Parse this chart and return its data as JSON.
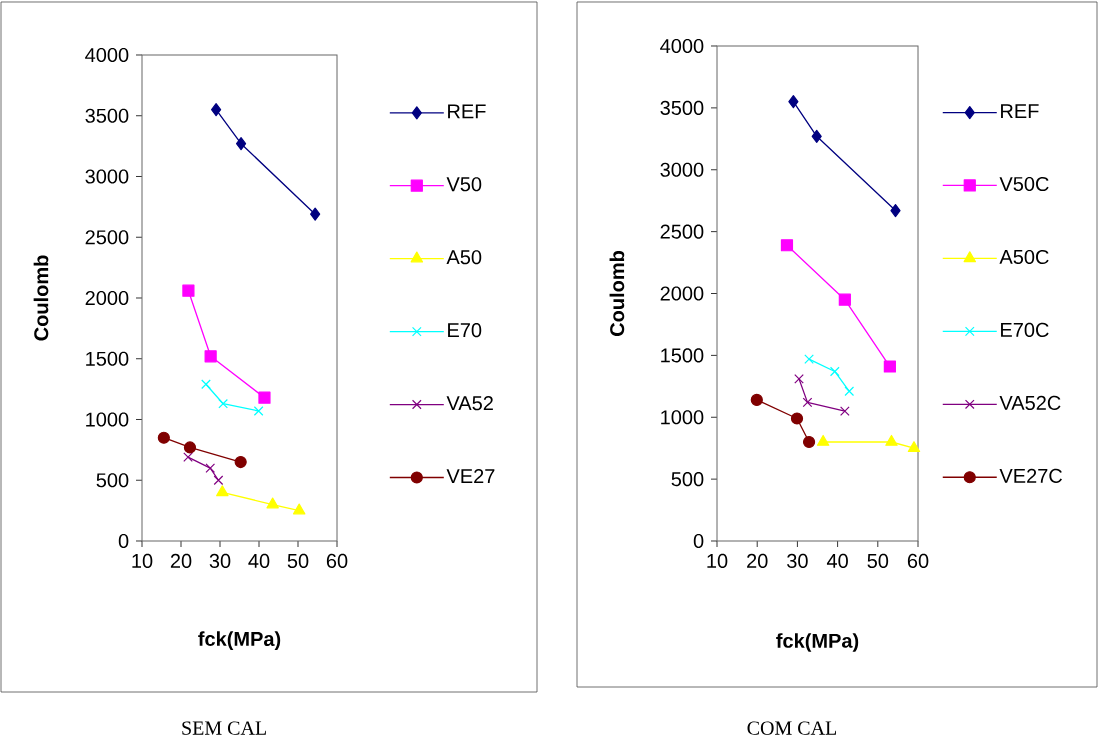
{
  "chart_data": [
    {
      "type": "line",
      "xlabel": "fck(MPa)",
      "ylabel": "Coulomb",
      "xlim": [
        10,
        60
      ],
      "xticks": [
        10,
        20,
        30,
        40,
        50,
        60
      ],
      "ylim": [
        0,
        4000
      ],
      "yticks": [
        0,
        500,
        1000,
        1500,
        2000,
        2500,
        3000,
        3500,
        4000
      ],
      "grid": false,
      "legend": "right",
      "line_style": "solid",
      "series": [
        {
          "name": "REF",
          "color": "#000080",
          "marker": "diamond",
          "x": [
            29.0,
            35.4,
            54.4
          ],
          "values": [
            3550,
            3270,
            2690
          ]
        },
        {
          "name": "V50",
          "color": "#ff00ff",
          "marker": "square",
          "x": [
            21.9,
            27.6,
            41.4
          ],
          "values": [
            2060,
            1520,
            1180
          ]
        },
        {
          "name": "A50",
          "color": "#ffff00",
          "marker": "triangle",
          "x": [
            30.6,
            43.5,
            50.3
          ],
          "values": [
            400,
            300,
            250
          ]
        },
        {
          "name": "E70",
          "color": "#00ffff",
          "marker": "cross",
          "x": [
            26.4,
            30.8,
            39.9
          ],
          "values": [
            1290,
            1130,
            1070
          ]
        },
        {
          "name": "VA52",
          "color": "#800080",
          "marker": "cross",
          "x": [
            21.8,
            27.5,
            29.6
          ],
          "values": [
            690,
            600,
            500
          ]
        },
        {
          "name": "VE27",
          "color": "#800000",
          "marker": "circle",
          "x": [
            15.6,
            22.3,
            35.3
          ],
          "values": [
            850,
            770,
            650
          ]
        }
      ],
      "annotations": [
        "SEM CAL"
      ]
    },
    {
      "type": "line",
      "xlabel": "fck(MPa)",
      "ylabel": "Coulomb",
      "xlim": [
        10,
        60
      ],
      "xticks": [
        10,
        20,
        30,
        40,
        50,
        60
      ],
      "ylim": [
        0,
        4000
      ],
      "yticks": [
        0,
        500,
        1000,
        1500,
        2000,
        2500,
        3000,
        3500,
        4000
      ],
      "grid": false,
      "legend": "right",
      "line_style": "solid",
      "series": [
        {
          "name": "REF",
          "color": "#000080",
          "marker": "diamond",
          "x": [
            29.0,
            34.8,
            54.4
          ],
          "values": [
            3550,
            3270,
            2670
          ]
        },
        {
          "name": "V50C",
          "color": "#ff00ff",
          "marker": "square",
          "x": [
            27.4,
            41.8,
            53.0
          ],
          "values": [
            2390,
            1950,
            1410
          ]
        },
        {
          "name": "A50C",
          "color": "#ffff00",
          "marker": "triangle",
          "x": [
            36.4,
            53.4,
            59.0
          ],
          "values": [
            800,
            800,
            750
          ]
        },
        {
          "name": "E70C",
          "color": "#00ffff",
          "marker": "cross",
          "x": [
            32.9,
            39.3,
            42.9
          ],
          "values": [
            1470,
            1370,
            1210
          ]
        },
        {
          "name": "VA52C",
          "color": "#800080",
          "marker": "cross",
          "x": [
            30.4,
            32.5,
            41.8
          ],
          "values": [
            1310,
            1120,
            1050
          ]
        },
        {
          "name": "VE27C",
          "color": "#800000",
          "marker": "circle",
          "x": [
            19.9,
            29.9,
            32.9
          ],
          "values": [
            1140,
            990,
            800
          ]
        }
      ],
      "annotations": [
        "COM CAL"
      ]
    }
  ]
}
